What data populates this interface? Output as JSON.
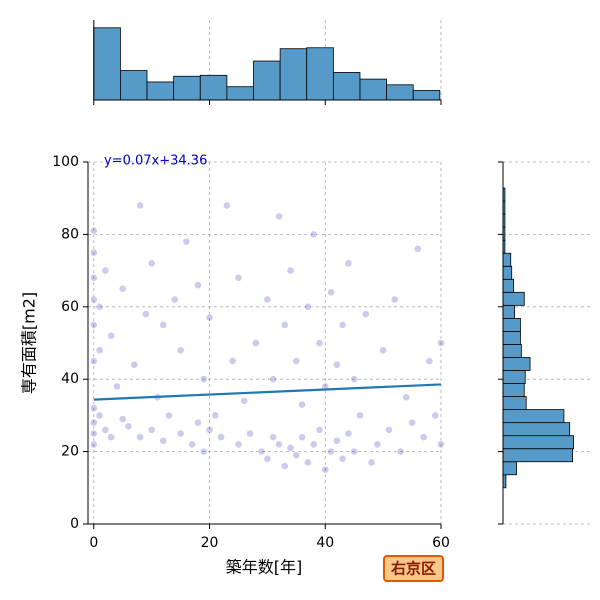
{
  "chart_data": [
    {
      "type": "scatter",
      "xlabel": "築年数[年]",
      "ylabel": "専有面積[m2]",
      "annotation": "y=0.07x+34.36",
      "tag": "右京区",
      "regression": {
        "slope": 0.07,
        "intercept": 34.36,
        "color": "#1f77b4"
      },
      "color": "#1010b0",
      "grid": true,
      "xlim": [
        -1,
        60
      ],
      "ylim": [
        0,
        100
      ],
      "xticks": [
        0,
        20,
        40,
        60
      ],
      "yticks": [
        0,
        20,
        40,
        60,
        80,
        100
      ],
      "x": [
        0,
        0,
        0,
        0,
        0,
        0,
        0,
        0,
        0,
        0,
        1,
        1,
        1,
        2,
        2,
        3,
        3,
        4,
        5,
        5,
        6,
        7,
        8,
        8,
        9,
        10,
        10,
        11,
        12,
        12,
        13,
        14,
        15,
        15,
        16,
        17,
        18,
        18,
        19,
        19,
        20,
        20,
        21,
        22,
        23,
        24,
        25,
        25,
        26,
        27,
        28,
        29,
        30,
        30,
        31,
        31,
        32,
        32,
        33,
        33,
        34,
        34,
        35,
        35,
        36,
        36,
        37,
        37,
        38,
        38,
        39,
        39,
        40,
        40,
        41,
        41,
        42,
        42,
        43,
        43,
        44,
        44,
        45,
        45,
        46,
        47,
        48,
        49,
        50,
        51,
        52,
        53,
        54,
        55,
        56,
        57,
        58,
        59,
        60,
        60
      ],
      "y": [
        25,
        28,
        32,
        45,
        55,
        62,
        68,
        75,
        81,
        22,
        30,
        48,
        60,
        26,
        70,
        24,
        52,
        38,
        29,
        65,
        27,
        44,
        24,
        88,
        58,
        26,
        72,
        35,
        23,
        55,
        30,
        62,
        25,
        48,
        78,
        22,
        28,
        66,
        20,
        40,
        26,
        57,
        30,
        24,
        88,
        45,
        22,
        68,
        34,
        25,
        50,
        20,
        18,
        62,
        24,
        40,
        22,
        85,
        16,
        55,
        21,
        70,
        19,
        45,
        24,
        33,
        17,
        60,
        22,
        80,
        26,
        50,
        15,
        38,
        20,
        64,
        23,
        44,
        18,
        55,
        25,
        72,
        20,
        40,
        30,
        58,
        17,
        22,
        48,
        26,
        62,
        20,
        35,
        28,
        76,
        24,
        45,
        30,
        50,
        22
      ]
    },
    {
      "type": "histogram",
      "orientation": "vertical",
      "color": "#559ac8",
      "grid": true,
      "xlim": [
        -1,
        60
      ],
      "xticks": [
        0,
        20,
        40,
        60
      ],
      "ylim": [
        0,
        160
      ],
      "bins": [
        0,
        4.6,
        9.2,
        13.8,
        18.4,
        23,
        27.6,
        32.2,
        36.8,
        41.4,
        46,
        50.6,
        55.2,
        59.8
      ],
      "counts": [
        152,
        62,
        38,
        50,
        52,
        28,
        82,
        108,
        110,
        58,
        44,
        32,
        20
      ]
    },
    {
      "type": "histogram",
      "orientation": "horizontal",
      "color": "#559ac8",
      "grid": true,
      "ylim": [
        0,
        100
      ],
      "yticks": [
        0,
        20,
        40,
        60,
        80,
        100
      ],
      "xlim": [
        0,
        180
      ],
      "bins": [
        10,
        13.6,
        17.2,
        20.8,
        24.4,
        28,
        31.6,
        35.2,
        38.8,
        42.4,
        46,
        49.6,
        53.2,
        56.8,
        60.4,
        64,
        67.6,
        71.2,
        74.8,
        78.4,
        82,
        85.6,
        89.2,
        92.8
      ],
      "counts": [
        6,
        28,
        144,
        146,
        138,
        126,
        48,
        44,
        46,
        56,
        38,
        36,
        36,
        24,
        44,
        22,
        18,
        16,
        4,
        4,
        4,
        4,
        4
      ]
    }
  ]
}
